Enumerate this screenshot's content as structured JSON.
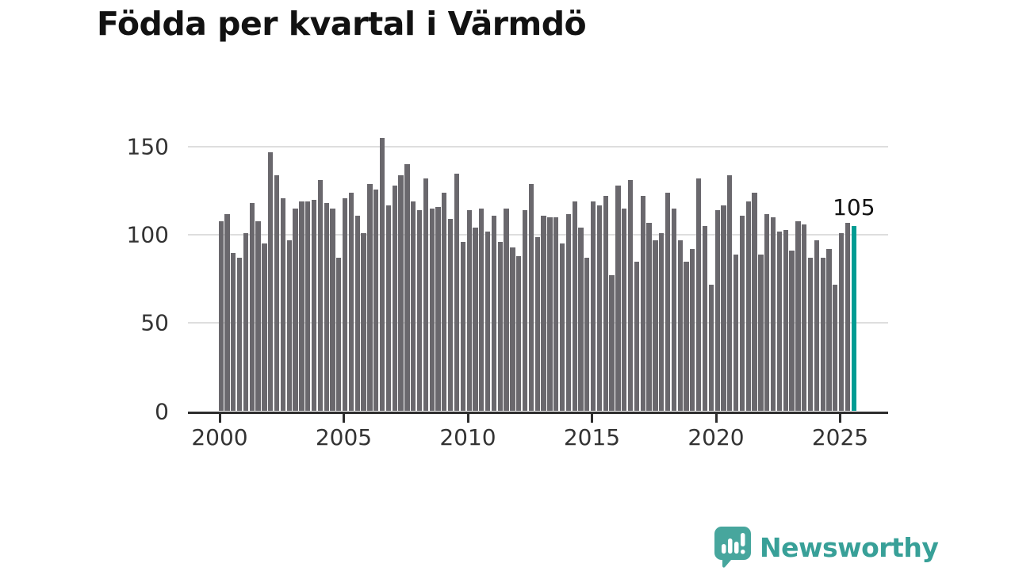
{
  "title": "Födda per kvartal i Värmdö",
  "annotation": {
    "last_value_label": "105"
  },
  "branding": {
    "name": "Newsworthy",
    "icon": "speech-bubble-bar-chart-icon"
  },
  "colors": {
    "bar": "#6a686d",
    "highlight": "#009c93",
    "grid": "#dedede",
    "axis": "#2d2d2d",
    "axis_text": "#333333",
    "title_text": "#121212",
    "brand_teal": "#38a098",
    "brand_bubble": "#47a69d"
  },
  "chart_data": {
    "type": "bar",
    "title": "Födda per kvartal i Värmdö",
    "xlabel": "",
    "ylabel": "",
    "x_unit": "quarter",
    "start_year": 2000,
    "start_quarter": 1,
    "x_tick_labels": [
      "2000",
      "2005",
      "2010",
      "2015",
      "2020",
      "2025"
    ],
    "x_tick_indices": [
      0,
      20,
      40,
      60,
      80,
      100
    ],
    "y_ticks": [
      0,
      50,
      100,
      150
    ],
    "ylim": [
      0,
      150
    ],
    "grid": "horizontal",
    "legend": "none",
    "highlight_index": 102,
    "highlight_value_label": "105",
    "series": [
      {
        "name": "Födda per kvartal",
        "values": [
          108,
          112,
          90,
          87,
          101,
          118,
          108,
          95,
          147,
          134,
          121,
          97,
          115,
          119,
          119,
          120,
          131,
          118,
          115,
          87,
          121,
          124,
          111,
          101,
          129,
          126,
          155,
          117,
          128,
          134,
          140,
          119,
          114,
          132,
          115,
          116,
          124,
          109,
          135,
          96,
          114,
          104,
          115,
          102,
          111,
          96,
          115,
          93,
          88,
          114,
          129,
          99,
          111,
          110,
          110,
          95,
          112,
          119,
          104,
          87,
          119,
          117,
          122,
          77,
          128,
          115,
          131,
          85,
          122,
          107,
          97,
          101,
          124,
          115,
          97,
          85,
          92,
          132,
          105,
          72,
          114,
          117,
          134,
          89,
          111,
          119,
          124,
          89,
          112,
          110,
          102,
          103,
          91,
          108,
          106,
          87,
          97,
          87,
          92,
          72,
          101,
          107,
          105
        ]
      }
    ]
  }
}
